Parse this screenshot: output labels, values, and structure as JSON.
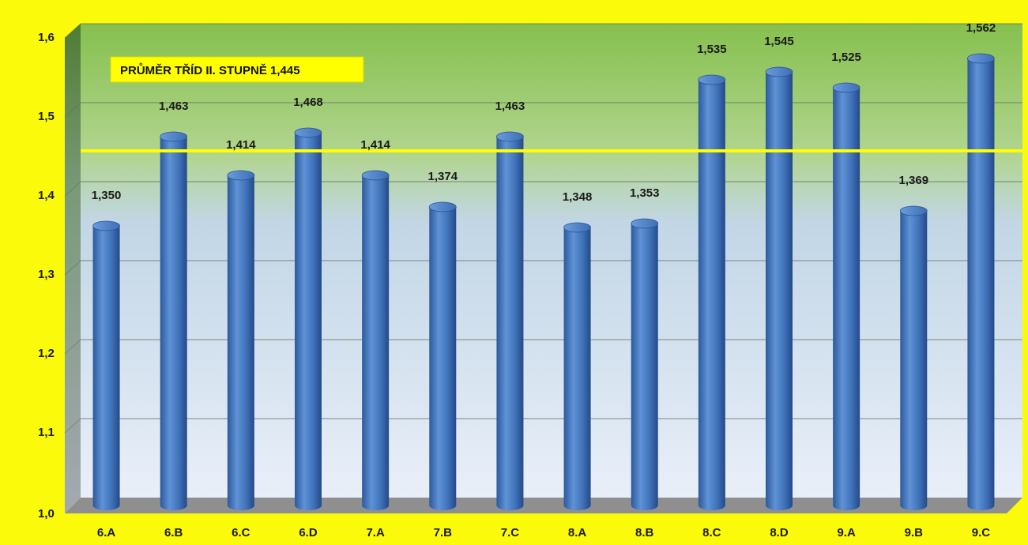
{
  "chart_data": {
    "type": "bar",
    "categories": [
      "6.A",
      "6.B",
      "6.C",
      "6.D",
      "7.A",
      "7.B",
      "7.C",
      "8.A",
      "8.B",
      "8.C",
      "8.D",
      "9.A",
      "9.B",
      "9.C"
    ],
    "values": [
      1.35,
      1.463,
      1.414,
      1.468,
      1.414,
      1.374,
      1.463,
      1.348,
      1.353,
      1.535,
      1.545,
      1.525,
      1.369,
      1.562
    ],
    "value_labels": [
      "1,350",
      "1,463",
      "1,414",
      "1,468",
      "1,414",
      "1,374",
      "1,463",
      "1,348",
      "1,353",
      "1,535",
      "1,545",
      "1,525",
      "1,369",
      "1,562"
    ],
    "yticks": [
      1.0,
      1.1,
      1.2,
      1.3,
      1.4,
      1.5,
      1.6
    ],
    "ytick_labels": [
      "1,0",
      "1,1",
      "1,2",
      "1,3",
      "1,4",
      "1,5",
      "1,6"
    ],
    "ylim": [
      1.0,
      1.6
    ],
    "average": {
      "value": 1.445,
      "label": "PRŮMĚR TŘÍD  II. STUPNĚ 1,445",
      "color": "#ffff00"
    },
    "title": "",
    "xlabel": "",
    "ylabel": "",
    "grid": true,
    "colors": {
      "background": "#fafa0a",
      "bar": "#3f72b8",
      "plot_top": "#8cc152",
      "plot_bottom": "#e8eef8"
    }
  }
}
